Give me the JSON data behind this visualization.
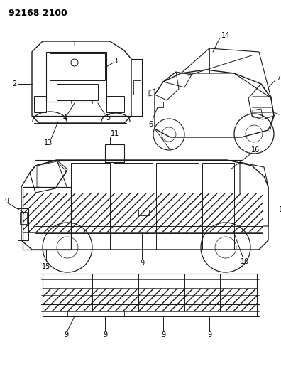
{
  "background_color": "#ffffff",
  "page_number": "92168 2100",
  "line_color": "#1a1a1a",
  "label_fontsize": 7,
  "figsize": [
    3.96,
    5.33
  ],
  "dpi": 100
}
